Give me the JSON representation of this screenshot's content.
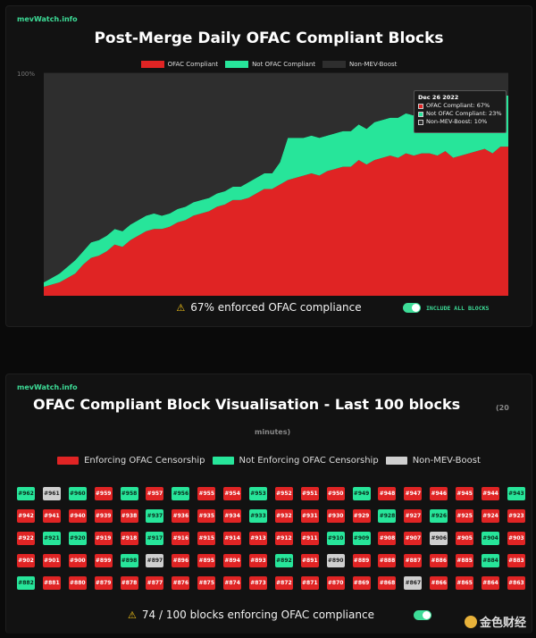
{
  "top": {
    "site": "mevWatch.info",
    "title": "Post-Merge Daily OFAC Compliant Blocks",
    "legend": [
      {
        "label": "OFAC Compliant",
        "color": "#e02424"
      },
      {
        "label": "Not OFAC Compliant",
        "color": "#27e59a"
      },
      {
        "label": "Non-MEV-Boost",
        "color": "#2e2e2e"
      }
    ],
    "y_tick_label": "100%",
    "tooltip": {
      "date": "Dec 26 2022",
      "rows": [
        {
          "text": "OFAC Compliant: 67%",
          "color": "#e02424"
        },
        {
          "text": "Not OFAC Compliant: 23%",
          "color": "#27e59a"
        },
        {
          "text": "Non-MEV-Boost: 10%",
          "color": "#2e2e2e"
        }
      ]
    },
    "status_text": "67% enforced OFAC compliance",
    "toggle_label": "INCLUDE ALL BLOCKS"
  },
  "chart_data": {
    "type": "area",
    "stacked": true,
    "ylim": [
      0,
      100
    ],
    "y_tick": "100%",
    "series": [
      {
        "name": "OFAC Compliant",
        "color": "#e02424",
        "values": [
          4,
          5,
          6,
          8,
          10,
          14,
          17,
          18,
          20,
          23,
          22,
          25,
          27,
          29,
          30,
          30,
          31,
          33,
          34,
          36,
          37,
          38,
          40,
          41,
          43,
          43,
          44,
          46,
          48,
          48,
          50,
          52,
          53,
          54,
          55,
          54,
          56,
          57,
          58,
          58,
          61,
          59,
          61,
          62,
          63,
          62,
          64,
          63,
          64,
          64,
          63,
          65,
          62,
          63,
          64,
          65,
          66,
          64,
          67,
          67
        ]
      },
      {
        "name": "Not OFAC Compliant",
        "color": "#27e59a",
        "values": [
          2,
          3,
          4,
          5,
          6,
          6,
          7,
          7,
          7,
          7,
          7,
          7,
          7,
          7,
          7,
          6,
          6,
          6,
          6,
          6,
          6,
          6,
          6,
          6,
          6,
          6,
          7,
          7,
          7,
          7,
          10,
          19,
          18,
          17,
          17,
          17,
          16,
          16,
          16,
          16,
          16,
          16,
          17,
          17,
          17,
          18,
          18,
          18,
          18,
          18,
          19,
          19,
          19,
          20,
          20,
          21,
          22,
          22,
          23,
          23
        ]
      },
      {
        "name": "Non-MEV-Boost",
        "color": "#2e2e2e",
        "values": [
          94,
          92,
          90,
          87,
          84,
          80,
          76,
          75,
          73,
          70,
          71,
          68,
          66,
          64,
          63,
          64,
          63,
          61,
          60,
          58,
          57,
          56,
          54,
          53,
          51,
          51,
          49,
          47,
          45,
          45,
          40,
          29,
          29,
          29,
          28,
          29,
          28,
          27,
          26,
          26,
          23,
          25,
          22,
          21,
          20,
          20,
          18,
          19,
          18,
          18,
          18,
          16,
          19,
          17,
          16,
          14,
          12,
          14,
          10,
          10
        ]
      }
    ],
    "highlight": {
      "label": "Dec 26 2022",
      "ofac": 67,
      "not_ofac": 23,
      "non_mev": 10
    }
  },
  "bottom": {
    "site": "mevWatch.info",
    "title": "OFAC Compliant Block Visualisation - Last 100 blocks",
    "title_sub_1": "(20",
    "title_sub_2": "minutes)",
    "legend": [
      {
        "label": "Enforcing OFAC Censorship",
        "color": "#e02424"
      },
      {
        "label": "Not Enforcing OFAC Censorship",
        "color": "#27e59a"
      },
      {
        "label": "Non-MEV-Boost",
        "color": "#cfcfcf"
      }
    ],
    "blocks": [
      {
        "id": "#962",
        "s": "green"
      },
      {
        "id": "#961",
        "s": "gray"
      },
      {
        "id": "#960",
        "s": "green"
      },
      {
        "id": "#959",
        "s": "red"
      },
      {
        "id": "#958",
        "s": "green"
      },
      {
        "id": "#957",
        "s": "red"
      },
      {
        "id": "#956",
        "s": "green"
      },
      {
        "id": "#955",
        "s": "red"
      },
      {
        "id": "#954",
        "s": "red"
      },
      {
        "id": "#953",
        "s": "green"
      },
      {
        "id": "#952",
        "s": "red"
      },
      {
        "id": "#951",
        "s": "red"
      },
      {
        "id": "#950",
        "s": "red"
      },
      {
        "id": "#949",
        "s": "green"
      },
      {
        "id": "#948",
        "s": "red"
      },
      {
        "id": "#947",
        "s": "red"
      },
      {
        "id": "#946",
        "s": "red"
      },
      {
        "id": "#945",
        "s": "red"
      },
      {
        "id": "#944",
        "s": "red"
      },
      {
        "id": "#943",
        "s": "green"
      },
      {
        "id": "#942",
        "s": "red"
      },
      {
        "id": "#941",
        "s": "red"
      },
      {
        "id": "#940",
        "s": "red"
      },
      {
        "id": "#939",
        "s": "red"
      },
      {
        "id": "#938",
        "s": "red"
      },
      {
        "id": "#937",
        "s": "green"
      },
      {
        "id": "#936",
        "s": "red"
      },
      {
        "id": "#935",
        "s": "red"
      },
      {
        "id": "#934",
        "s": "red"
      },
      {
        "id": "#933",
        "s": "green"
      },
      {
        "id": "#932",
        "s": "red"
      },
      {
        "id": "#931",
        "s": "red"
      },
      {
        "id": "#930",
        "s": "red"
      },
      {
        "id": "#929",
        "s": "red"
      },
      {
        "id": "#928",
        "s": "green"
      },
      {
        "id": "#927",
        "s": "red"
      },
      {
        "id": "#926",
        "s": "green"
      },
      {
        "id": "#925",
        "s": "red"
      },
      {
        "id": "#924",
        "s": "red"
      },
      {
        "id": "#923",
        "s": "red"
      },
      {
        "id": "#922",
        "s": "red"
      },
      {
        "id": "#921",
        "s": "green"
      },
      {
        "id": "#920",
        "s": "green"
      },
      {
        "id": "#919",
        "s": "red"
      },
      {
        "id": "#918",
        "s": "red"
      },
      {
        "id": "#917",
        "s": "green"
      },
      {
        "id": "#916",
        "s": "red"
      },
      {
        "id": "#915",
        "s": "red"
      },
      {
        "id": "#914",
        "s": "red"
      },
      {
        "id": "#913",
        "s": "red"
      },
      {
        "id": "#912",
        "s": "red"
      },
      {
        "id": "#911",
        "s": "red"
      },
      {
        "id": "#910",
        "s": "green"
      },
      {
        "id": "#909",
        "s": "green"
      },
      {
        "id": "#908",
        "s": "red"
      },
      {
        "id": "#907",
        "s": "red"
      },
      {
        "id": "#906",
        "s": "gray"
      },
      {
        "id": "#905",
        "s": "red"
      },
      {
        "id": "#904",
        "s": "green"
      },
      {
        "id": "#903",
        "s": "red"
      },
      {
        "id": "#902",
        "s": "red"
      },
      {
        "id": "#901",
        "s": "red"
      },
      {
        "id": "#900",
        "s": "red"
      },
      {
        "id": "#899",
        "s": "red"
      },
      {
        "id": "#898",
        "s": "green"
      },
      {
        "id": "#897",
        "s": "gray"
      },
      {
        "id": "#896",
        "s": "red"
      },
      {
        "id": "#895",
        "s": "red"
      },
      {
        "id": "#894",
        "s": "red"
      },
      {
        "id": "#893",
        "s": "red"
      },
      {
        "id": "#892",
        "s": "green"
      },
      {
        "id": "#891",
        "s": "red"
      },
      {
        "id": "#890",
        "s": "gray"
      },
      {
        "id": "#889",
        "s": "red"
      },
      {
        "id": "#888",
        "s": "red"
      },
      {
        "id": "#887",
        "s": "red"
      },
      {
        "id": "#886",
        "s": "red"
      },
      {
        "id": "#885",
        "s": "red"
      },
      {
        "id": "#884",
        "s": "green"
      },
      {
        "id": "#883",
        "s": "red"
      },
      {
        "id": "#882",
        "s": "green"
      },
      {
        "id": "#881",
        "s": "red"
      },
      {
        "id": "#880",
        "s": "red"
      },
      {
        "id": "#879",
        "s": "red"
      },
      {
        "id": "#878",
        "s": "red"
      },
      {
        "id": "#877",
        "s": "red"
      },
      {
        "id": "#876",
        "s": "red"
      },
      {
        "id": "#875",
        "s": "red"
      },
      {
        "id": "#874",
        "s": "red"
      },
      {
        "id": "#873",
        "s": "red"
      },
      {
        "id": "#872",
        "s": "red"
      },
      {
        "id": "#871",
        "s": "red"
      },
      {
        "id": "#870",
        "s": "red"
      },
      {
        "id": "#869",
        "s": "red"
      },
      {
        "id": "#868",
        "s": "red"
      },
      {
        "id": "#867",
        "s": "gray"
      },
      {
        "id": "#866",
        "s": "red"
      },
      {
        "id": "#865",
        "s": "red"
      },
      {
        "id": "#864",
        "s": "red"
      },
      {
        "id": "#863",
        "s": "red"
      }
    ],
    "status_text": "74 / 100 blocks enforcing OFAC compliance",
    "watermark": "金色财经"
  }
}
